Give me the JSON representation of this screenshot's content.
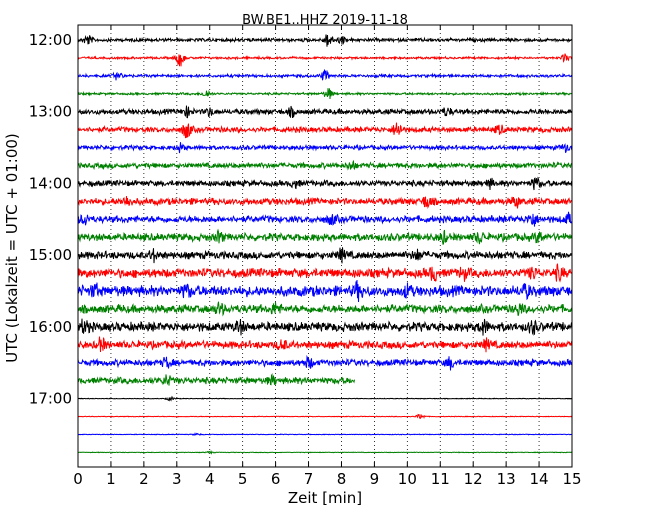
{
  "chart_data": {
    "type": "line",
    "title": "BW.BE1..HHZ 2019-11-18",
    "xlabel": "Zeit  [min]",
    "ylabel": "UTC (Lokalzeit = UTC + 01:00)",
    "xlim": [
      0,
      15
    ],
    "x_ticks": [
      "0",
      "1",
      "2",
      "3",
      "4",
      "5",
      "6",
      "7",
      "8",
      "9",
      "10",
      "11",
      "12",
      "13",
      "14",
      "15"
    ],
    "y_ticks": [
      "12:00",
      "13:00",
      "14:00",
      "15:00",
      "16:00",
      "17:00"
    ],
    "grid": "vertical dotted",
    "series_colors": [
      "#000000",
      "#ff0000",
      "#0000ff",
      "#008000"
    ],
    "traces": [
      {
        "time": "12:00",
        "color": "#000000",
        "amp": 0.22,
        "end_min": 15,
        "bursts": [
          [
            0.3,
            0.5
          ],
          [
            7.6,
            0.8
          ],
          [
            8.0,
            0.4
          ]
        ]
      },
      {
        "time": "12:15",
        "color": "#ff0000",
        "amp": 0.14,
        "end_min": 15,
        "bursts": [
          [
            3.1,
            0.9
          ],
          [
            14.8,
            0.4
          ]
        ]
      },
      {
        "time": "12:30",
        "color": "#0000ff",
        "amp": 0.18,
        "end_min": 15,
        "bursts": [
          [
            1.2,
            0.4
          ],
          [
            7.5,
            0.6
          ]
        ]
      },
      {
        "time": "12:45",
        "color": "#008000",
        "amp": 0.14,
        "end_min": 15,
        "bursts": [
          [
            3.9,
            0.4
          ],
          [
            7.6,
            0.6
          ]
        ]
      },
      {
        "time": "13:00",
        "color": "#000000",
        "amp": 0.35,
        "end_min": 15,
        "bursts": [
          [
            3.3,
            0.5
          ],
          [
            4.0,
            0.4
          ],
          [
            6.5,
            0.4
          ],
          [
            11.2,
            0.4
          ]
        ]
      },
      {
        "time": "13:15",
        "color": "#ff0000",
        "amp": 0.35,
        "end_min": 15,
        "bursts": [
          [
            3.3,
            0.9
          ],
          [
            9.7,
            0.8
          ],
          [
            12.8,
            0.4
          ]
        ]
      },
      {
        "time": "13:30",
        "color": "#0000ff",
        "amp": 0.28,
        "end_min": 15,
        "bursts": [
          [
            3.1,
            0.4
          ],
          [
            14.8,
            0.4
          ]
        ]
      },
      {
        "time": "13:45",
        "color": "#008000",
        "amp": 0.35,
        "end_min": 15,
        "bursts": [
          [
            8.3,
            0.4
          ]
        ]
      },
      {
        "time": "14:00",
        "color": "#000000",
        "amp": 0.38,
        "end_min": 15,
        "bursts": [
          [
            13.9,
            0.6
          ],
          [
            12.5,
            0.4
          ],
          [
            6.6,
            0.4
          ]
        ]
      },
      {
        "time": "14:15",
        "color": "#ff0000",
        "amp": 0.45,
        "end_min": 15,
        "bursts": [
          [
            1.5,
            0.5
          ],
          [
            10.6,
            0.6
          ],
          [
            13.3,
            0.5
          ]
        ]
      },
      {
        "time": "14:30",
        "color": "#0000ff",
        "amp": 0.45,
        "end_min": 15,
        "bursts": [
          [
            0.2,
            0.5
          ],
          [
            13.8,
            0.7
          ],
          [
            14.9,
            0.5
          ],
          [
            7.7,
            0.5
          ]
        ]
      },
      {
        "time": "14:45",
        "color": "#008000",
        "amp": 0.5,
        "end_min": 15,
        "bursts": [
          [
            4.3,
            0.5
          ],
          [
            11.1,
            0.5
          ],
          [
            12.2,
            0.5
          ],
          [
            14.0,
            0.5
          ]
        ]
      },
      {
        "time": "15:00",
        "color": "#000000",
        "amp": 0.5,
        "end_min": 15,
        "bursts": [
          [
            2.3,
            0.5
          ],
          [
            8.0,
            0.6
          ],
          [
            10.3,
            0.5
          ]
        ]
      },
      {
        "time": "15:15",
        "color": "#ff0000",
        "amp": 0.6,
        "end_min": 15,
        "bursts": [
          [
            10.8,
            0.7
          ],
          [
            11.7,
            0.5
          ],
          [
            13.8,
            0.5
          ],
          [
            14.6,
            0.6
          ]
        ]
      },
      {
        "time": "15:30",
        "color": "#0000ff",
        "amp": 0.7,
        "end_min": 15,
        "bursts": [
          [
            0.5,
            0.5
          ],
          [
            3.3,
            0.5
          ],
          [
            8.5,
            0.7
          ],
          [
            10.0,
            0.5
          ],
          [
            13.6,
            0.5
          ]
        ]
      },
      {
        "time": "15:45",
        "color": "#008000",
        "amp": 0.55,
        "end_min": 15,
        "bursts": [
          [
            4.3,
            0.5
          ],
          [
            6.0,
            0.5
          ],
          [
            13.4,
            0.5
          ]
        ]
      },
      {
        "time": "16:00",
        "color": "#000000",
        "amp": 0.6,
        "end_min": 15,
        "bursts": [
          [
            0.2,
            0.6
          ],
          [
            4.9,
            0.6
          ],
          [
            12.3,
            0.7
          ],
          [
            13.8,
            0.5
          ]
        ]
      },
      {
        "time": "16:15",
        "color": "#ff0000",
        "amp": 0.5,
        "end_min": 15,
        "bursts": [
          [
            0.7,
            0.6
          ],
          [
            6.2,
            0.5
          ],
          [
            12.4,
            0.5
          ]
        ]
      },
      {
        "time": "16:30",
        "color": "#0000ff",
        "amp": 0.42,
        "end_min": 15,
        "bursts": [
          [
            2.7,
            0.5
          ],
          [
            7.0,
            0.5
          ],
          [
            11.3,
            0.5
          ]
        ]
      },
      {
        "time": "16:45",
        "color": "#008000",
        "amp": 0.42,
        "end_min": 8.4,
        "bursts": [
          [
            2.7,
            0.5
          ],
          [
            5.9,
            0.4
          ]
        ]
      },
      {
        "time": "17:00",
        "color": "#000000",
        "amp": 0.04,
        "end_min": 15,
        "bursts": [
          [
            2.8,
            0.2
          ]
        ]
      },
      {
        "time": "17:15",
        "color": "#ff0000",
        "amp": 0.04,
        "end_min": 15,
        "bursts": [
          [
            10.4,
            0.3
          ]
        ]
      },
      {
        "time": "17:30",
        "color": "#0000ff",
        "amp": 0.04,
        "end_min": 15,
        "bursts": [
          [
            3.6,
            0.1
          ]
        ]
      },
      {
        "time": "17:45",
        "color": "#008000",
        "amp": 0.04,
        "end_min": 15,
        "bursts": [
          [
            4.0,
            0.1
          ]
        ]
      }
    ]
  }
}
